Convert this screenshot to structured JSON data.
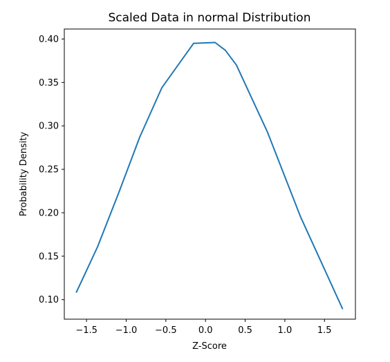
{
  "chart_data": {
    "type": "line",
    "title": "Scaled Data in normal Distribution",
    "xlabel": "Z-Score",
    "ylabel": "Probability Density",
    "xlim": [
      -1.78,
      1.89
    ],
    "ylim": [
      0.0775,
      0.4115
    ],
    "x_ticks": [
      -1.5,
      -1.0,
      -0.5,
      0.0,
      0.5,
      1.0,
      1.5
    ],
    "x_tick_labels": [
      "−1.5",
      "−1.0",
      "−0.5",
      "0.0",
      "0.5",
      "1.0",
      "1.5"
    ],
    "y_ticks": [
      0.1,
      0.15,
      0.2,
      0.25,
      0.3,
      0.35,
      0.4
    ],
    "y_tick_labels": [
      "0.10",
      "0.15",
      "0.20",
      "0.25",
      "0.30",
      "0.35",
      "0.40"
    ],
    "grid": false,
    "series": [
      {
        "color": "#1f77b4",
        "x": [
          -1.63,
          -1.36,
          -1.09,
          -0.83,
          -0.55,
          -0.15,
          0.12,
          0.25,
          0.39,
          0.78,
          1.2,
          1.73
        ],
        "y": [
          0.108,
          0.161,
          0.224,
          0.287,
          0.344,
          0.395,
          0.396,
          0.387,
          0.37,
          0.293,
          0.195,
          0.089
        ]
      }
    ]
  }
}
